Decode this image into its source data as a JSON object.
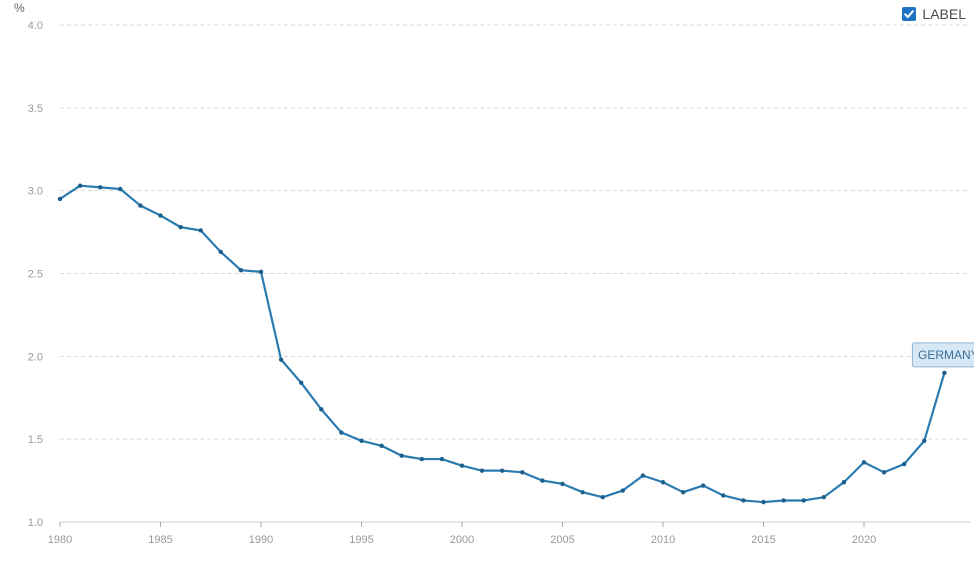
{
  "legend": {
    "label": "LABEL",
    "checked": true,
    "checkbox_color": "#1f72c4"
  },
  "chart_data": {
    "type": "line",
    "ylabel": "%",
    "xlim": [
      1980,
      2025
    ],
    "ylim": [
      1.0,
      4.0
    ],
    "y_ticks": [
      "1.0",
      "1.5",
      "2.0",
      "2.5",
      "3.0",
      "3.5",
      "4.0"
    ],
    "x_ticks": [
      "1980",
      "1985",
      "1990",
      "1995",
      "2000",
      "2005",
      "2010",
      "2015",
      "2020"
    ],
    "grid": true,
    "line_color": "#2b7bb0",
    "series": [
      {
        "name": "GERMANY",
        "x": [
          1980,
          1981,
          1982,
          1983,
          1984,
          1985,
          1986,
          1987,
          1988,
          1989,
          1990,
          1991,
          1992,
          1993,
          1994,
          1995,
          1996,
          1997,
          1998,
          1999,
          2000,
          2001,
          2002,
          2003,
          2004,
          2005,
          2006,
          2007,
          2008,
          2009,
          2010,
          2011,
          2012,
          2013,
          2014,
          2015,
          2016,
          2017,
          2018,
          2019,
          2020,
          2021,
          2022,
          2023,
          2024
        ],
        "y": [
          2.95,
          3.03,
          3.02,
          3.01,
          2.91,
          2.85,
          2.78,
          2.76,
          2.63,
          2.52,
          2.51,
          1.98,
          1.84,
          1.68,
          1.54,
          1.49,
          1.46,
          1.4,
          1.38,
          1.38,
          1.34,
          1.31,
          1.31,
          1.3,
          1.25,
          1.23,
          1.18,
          1.15,
          1.19,
          1.28,
          1.24,
          1.18,
          1.22,
          1.16,
          1.13,
          1.12,
          1.13,
          1.13,
          1.15,
          1.24,
          1.36,
          1.3,
          1.35,
          1.49,
          1.9
        ]
      }
    ]
  }
}
